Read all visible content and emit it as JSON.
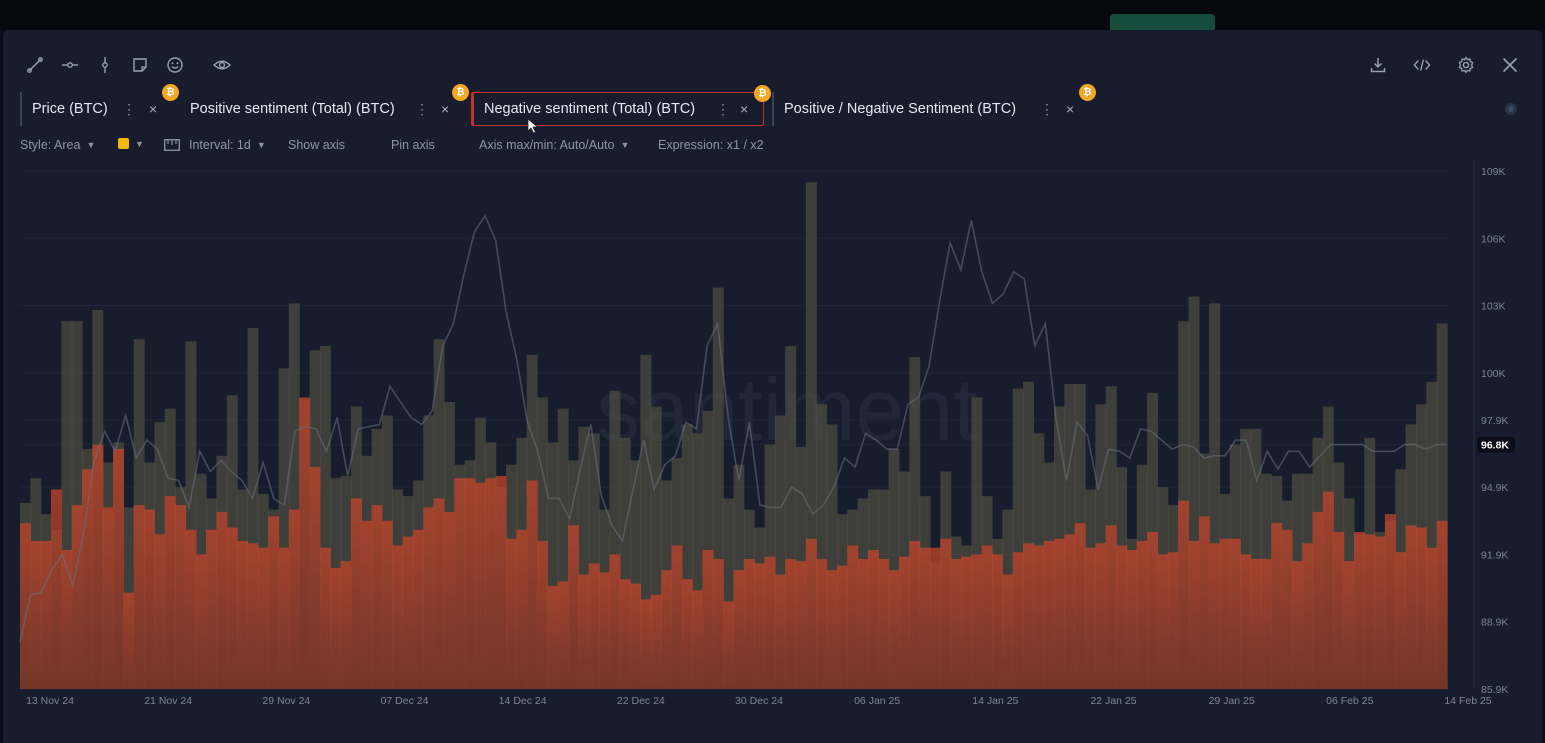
{
  "toolbar": {
    "left_icons": [
      "line-tool-icon",
      "horizontal-line-icon",
      "vertical-line-icon",
      "note-icon",
      "emoji-icon",
      "eye-icon"
    ],
    "right_icons": [
      "download-icon",
      "embed-code-icon",
      "gear-icon",
      "close-icon"
    ]
  },
  "tabs": [
    {
      "label": "Price (BTC)",
      "active": false
    },
    {
      "label": "Positive sentiment (Total) (BTC)",
      "active": false
    },
    {
      "label": "Negative sentiment (Total) (BTC)",
      "active": true
    },
    {
      "label": "Positive / Negative Sentiment (BTC)",
      "active": false
    }
  ],
  "tab_controls": {
    "more": "⋮",
    "close": "×",
    "coin_symbol": "₿"
  },
  "options": {
    "style": "Style: Area",
    "color": "#f5b800",
    "interval": "Interval: 1d",
    "show_axis": "Show axis",
    "pin_axis": "Pin axis",
    "axis_minmax": "Axis max/min: Auto/Auto",
    "expression": "Expression: x1 / x2"
  },
  "chart_data": {
    "type": "bar",
    "watermark": "santiment",
    "y_axis": {
      "ticks": [
        "109K",
        "106K",
        "103K",
        "100K",
        "97.9K",
        "96.8K",
        "94.9K",
        "91.9K",
        "88.9K",
        "85.9K"
      ],
      "tick_values": [
        109000,
        106000,
        103000,
        100000,
        97900,
        96800,
        94900,
        91900,
        88900,
        85900
      ],
      "ylim": [
        85900,
        109000
      ],
      "current_price_label": "96.8K",
      "current_price": 96800
    },
    "x_axis": {
      "ticks": [
        "13 Nov 24",
        "21 Nov 24",
        "29 Nov 24",
        "07 Dec 24",
        "14 Dec 24",
        "22 Dec 24",
        "30 Dec 24",
        "06 Jan 25",
        "14 Jan 25",
        "22 Jan 25",
        "29 Jan 25",
        "06 Feb 25",
        "14 Feb 25"
      ]
    },
    "series": [
      {
        "key": "positive",
        "color": "#5e5a45",
        "values": [
          94.2,
          95.3,
          93.7,
          93.0,
          102.3,
          102.3,
          96.6,
          102.8,
          96.0,
          96.9,
          94.0,
          101.5,
          96.0,
          97.8,
          98.4,
          94.9,
          101.4,
          95.5,
          94.4,
          96.3,
          99.0,
          94.8,
          102.0,
          94.6,
          93.9,
          100.2,
          103.1,
          98.8,
          101.0,
          101.2,
          95.3,
          95.4,
          98.5,
          96.3,
          97.5,
          98.1,
          94.8,
          94.5,
          95.2,
          98.1,
          101.5,
          98.7,
          95.9,
          96.1,
          98.0,
          96.9,
          94.9,
          95.9,
          97.1,
          100.8,
          98.9,
          96.9,
          98.4,
          96.1,
          97.6,
          97.3,
          93.9,
          99.2,
          97.1,
          96.1,
          100.8,
          98.5,
          95.2,
          96.2,
          97.7,
          97.3,
          98.3,
          103.8,
          94.4,
          95.9,
          93.9,
          93.1,
          96.8,
          98.1,
          101.2,
          96.7,
          108.5,
          98.6,
          97.7,
          93.7,
          93.9,
          94.4,
          94.8,
          94.8,
          96.6,
          95.6,
          100.7,
          94.5,
          91.5,
          95.6,
          92.7,
          92.3,
          98.9,
          94.5,
          92.6,
          93.9,
          99.3,
          99.6,
          97.3,
          96.0,
          98.5,
          99.5,
          99.5,
          94.8,
          98.6,
          99.4,
          95.8,
          92.6,
          95.9,
          99.1,
          94.9,
          94.1,
          102.3,
          103.4,
          96.4,
          103.1,
          94.6,
          96.8,
          97.5,
          97.5,
          95.5,
          95.4,
          94.3,
          95.5,
          95.5,
          97.1,
          98.5,
          96.0,
          94.4,
          92.8,
          97.1,
          92.9,
          93.4,
          95.7,
          97.7,
          98.6,
          99.6,
          102.2
        ]
      },
      {
        "key": "negative",
        "color": "#c4452a",
        "values": [
          93.3,
          92.5,
          92.5,
          94.8,
          92.1,
          94.1,
          95.7,
          96.8,
          94.0,
          96.6,
          90.2,
          94.1,
          93.9,
          92.8,
          94.5,
          94.1,
          93.0,
          91.9,
          93.0,
          93.8,
          93.1,
          92.5,
          92.4,
          92.2,
          93.6,
          92.2,
          93.9,
          98.9,
          95.8,
          92.2,
          91.3,
          91.6,
          94.4,
          93.4,
          94.1,
          93.4,
          92.3,
          92.7,
          93.0,
          94.0,
          94.4,
          93.8,
          95.3,
          95.3,
          95.1,
          95.3,
          95.4,
          92.6,
          93.0,
          95.2,
          92.5,
          90.5,
          90.7,
          93.2,
          91.0,
          91.5,
          91.1,
          91.9,
          90.8,
          90.6,
          89.9,
          90.1,
          91.2,
          92.3,
          90.8,
          90.3,
          92.1,
          91.7,
          89.8,
          91.2,
          91.7,
          91.5,
          91.8,
          91.0,
          91.7,
          91.6,
          92.6,
          91.7,
          91.2,
          91.4,
          92.3,
          91.7,
          92.1,
          91.7,
          91.2,
          91.8,
          92.5,
          92.2,
          92.2,
          92.6,
          91.7,
          91.8,
          91.9,
          92.3,
          91.9,
          91.0,
          92.0,
          92.4,
          92.3,
          92.5,
          92.6,
          92.8,
          93.3,
          92.2,
          92.4,
          93.2,
          92.3,
          92.1,
          92.5,
          92.9,
          91.9,
          92.0,
          94.3,
          92.5,
          93.6,
          92.4,
          92.6,
          92.6,
          91.9,
          91.7,
          91.7,
          93.3,
          93.0,
          91.6,
          92.4,
          93.8,
          94.7,
          92.9,
          91.6,
          92.9,
          92.8,
          92.7,
          93.7,
          92.0,
          93.2,
          93.1,
          92.2,
          93.4
        ]
      },
      {
        "key": "price",
        "color": "#6a6f7e",
        "values": [
          88.0,
          90.1,
          90.2,
          91.2,
          91.9,
          90.5,
          92.8,
          96.0,
          97.4,
          96.5,
          98.1,
          96.2,
          97.0,
          96.6,
          95.3,
          95.2,
          94.0,
          96.5,
          95.6,
          96.1,
          95.6,
          95.2,
          94.4,
          96.0,
          94.4,
          94.1,
          97.4,
          97.6,
          97.5,
          96.5,
          98.0,
          95.4,
          97.5,
          97.6,
          97.7,
          99.4,
          98.7,
          98.0,
          97.7,
          98.3,
          101.2,
          102.2,
          104.4,
          106.3,
          107.0,
          105.9,
          102.7,
          100.6,
          97.8,
          96.5,
          94.4,
          94.4,
          93.5,
          95.7,
          97.7,
          94.5,
          93.2,
          92.5,
          94.8,
          97.0,
          94.8,
          95.9,
          96.3,
          97.8,
          97.5,
          101.2,
          102.2,
          98.0,
          95.2,
          97.8,
          94.1,
          94.0,
          94.0,
          94.9,
          94.6,
          93.7,
          94.1,
          94.9,
          96.2,
          95.8,
          97.3,
          97.0,
          96.6,
          96.6,
          98.6,
          98.9,
          100.3,
          103.2,
          105.8,
          104.6,
          106.8,
          104.5,
          103.1,
          103.5,
          104.5,
          104.2,
          101.2,
          102.2,
          98.0,
          95.2,
          97.8,
          97.2,
          94.8,
          96.6,
          96.5,
          96.2,
          97.5,
          97.4,
          97.0,
          96.6,
          96.8,
          96.7,
          96.2,
          96.3,
          96.3,
          97.0,
          97.0,
          95.2,
          96.5,
          95.7,
          96.5,
          96.5,
          95.8,
          96.3,
          96.8,
          96.8,
          96.8,
          96.8,
          96.5,
          96.5,
          96.5,
          96.8,
          96.8,
          96.6,
          96.8,
          96.8
        ]
      }
    ]
  }
}
